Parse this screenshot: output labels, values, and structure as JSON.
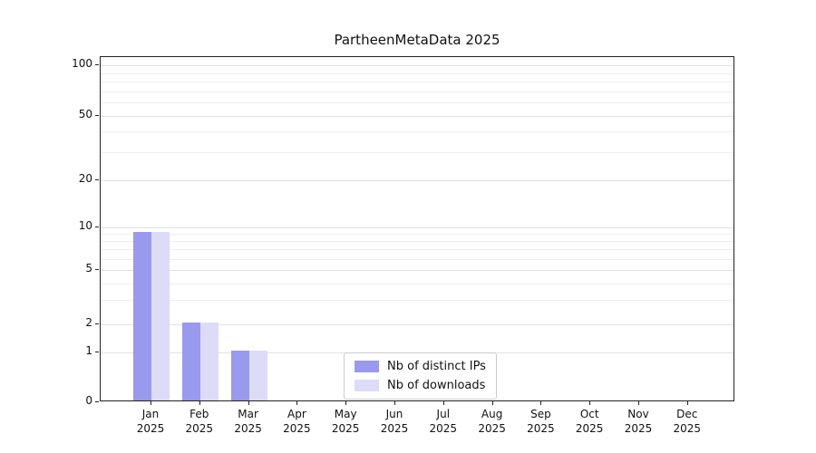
{
  "title": "PartheenMetaData 2025",
  "chart_data": {
    "type": "bar",
    "title": "PartheenMetaData 2025",
    "categories": [
      "Jan 2025",
      "Feb 2025",
      "Mar 2025",
      "Apr 2025",
      "May 2025",
      "Jun 2025",
      "Jul 2025",
      "Aug 2025",
      "Sep 2025",
      "Oct 2025",
      "Nov 2025",
      "Dec 2025"
    ],
    "series": [
      {
        "name": "Nb of distinct IPs",
        "color": "#9999ee",
        "values": [
          9,
          2,
          1,
          0,
          0,
          0,
          0,
          0,
          0,
          0,
          0,
          0
        ]
      },
      {
        "name": "Nb of downloads",
        "color": "#dcdcf8",
        "values": [
          9,
          2,
          1,
          0,
          0,
          0,
          0,
          0,
          0,
          0,
          0,
          0
        ]
      }
    ],
    "yticks": [
      0,
      1,
      2,
      5,
      10,
      20,
      50,
      100
    ],
    "minor_grid_values": [
      3,
      4,
      6,
      7,
      8,
      9,
      30,
      40,
      60,
      70,
      80,
      90
    ],
    "ylim": [
      0,
      115
    ],
    "scale": "symlog",
    "grid": true,
    "legend_position": "bottom-center"
  },
  "colors": {
    "grid_major": "#e2e2e2",
    "grid_minor": "#ededed",
    "axis": "#222222",
    "legend_border": "#cccccc",
    "background": "#ffffff"
  }
}
